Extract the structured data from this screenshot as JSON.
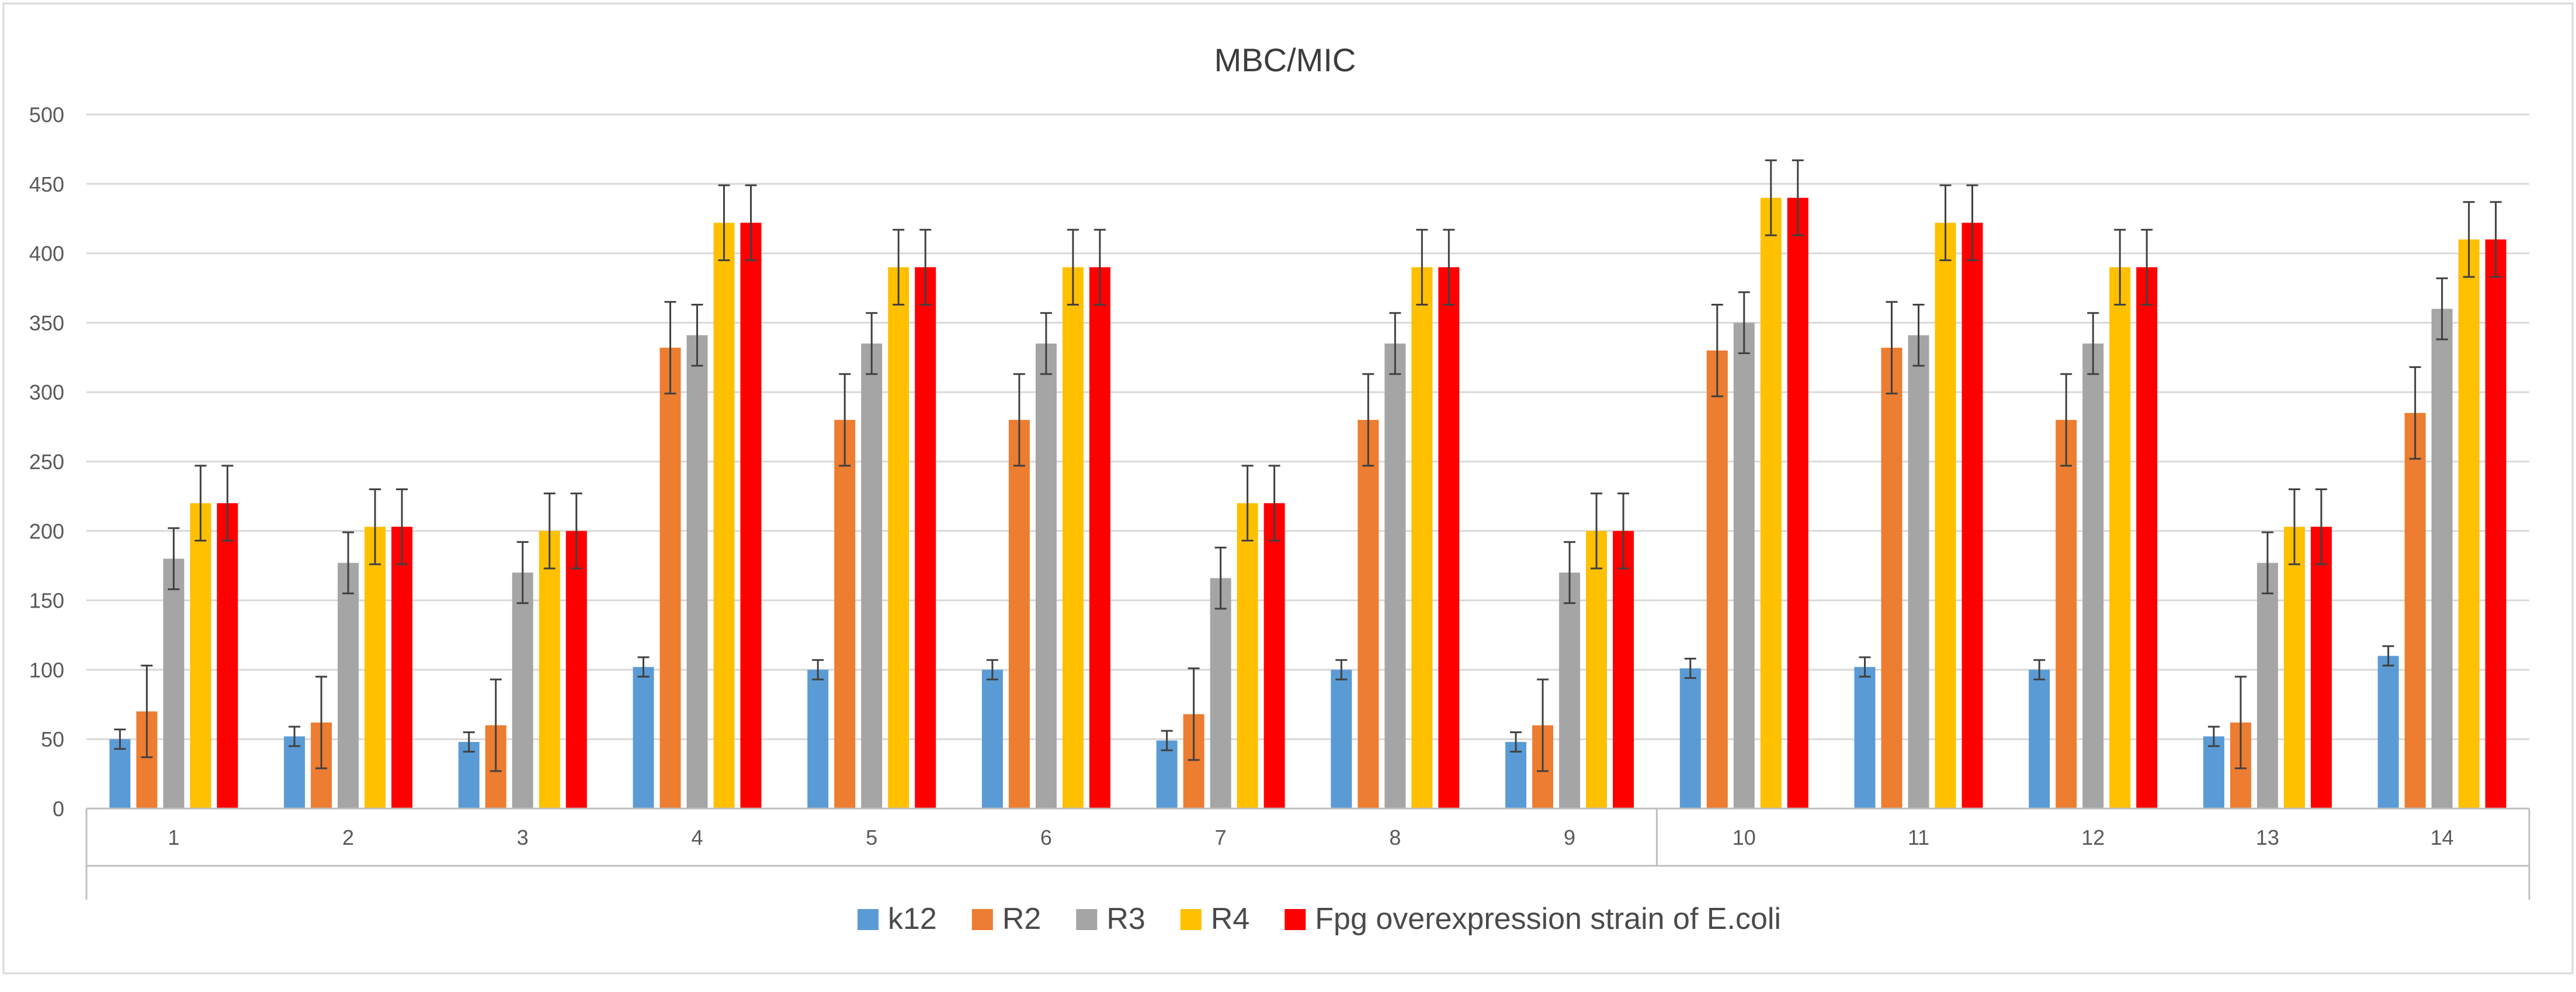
{
  "chart_data": {
    "type": "bar",
    "title": "MBC/MIC",
    "xlabel": "",
    "ylabel": "",
    "ylim": [
      0,
      500
    ],
    "yticks": [
      0,
      50,
      100,
      150,
      200,
      250,
      300,
      350,
      400,
      450,
      500
    ],
    "categories": [
      "1",
      "2",
      "3",
      "4",
      "5",
      "6",
      "7",
      "8",
      "9",
      "10",
      "11",
      "12",
      "13",
      "14"
    ],
    "grid": true,
    "legend_position": "bottom",
    "series": [
      {
        "name": "k12",
        "color": "#5b9bd5",
        "values": [
          50,
          52,
          48,
          102,
          100,
          100,
          49,
          100,
          48,
          101,
          102,
          100,
          52,
          110
        ],
        "errors": [
          7,
          7,
          7,
          7,
          7,
          7,
          7,
          7,
          7,
          7,
          7,
          7,
          7,
          7
        ]
      },
      {
        "name": "R2",
        "color": "#ed7d31",
        "values": [
          70,
          62,
          60,
          332,
          280,
          280,
          68,
          280,
          60,
          330,
          332,
          280,
          62,
          285
        ],
        "errors": [
          33,
          33,
          33,
          33,
          33,
          33,
          33,
          33,
          33,
          33,
          33,
          33,
          33,
          33
        ]
      },
      {
        "name": "R3",
        "color": "#a5a5a5",
        "values": [
          180,
          177,
          170,
          341,
          335,
          335,
          166,
          335,
          170,
          350,
          341,
          335,
          177,
          360
        ],
        "errors": [
          22,
          22,
          22,
          22,
          22,
          22,
          22,
          22,
          22,
          22,
          22,
          22,
          22,
          22
        ]
      },
      {
        "name": "R4",
        "color": "#ffc000",
        "values": [
          220,
          203,
          200,
          422,
          390,
          390,
          220,
          390,
          200,
          440,
          422,
          390,
          203,
          410
        ],
        "errors": [
          27,
          27,
          27,
          27,
          27,
          27,
          27,
          27,
          27,
          27,
          27,
          27,
          27,
          27
        ]
      },
      {
        "name": "Fpg overexpression strain of E.coli",
        "color": "#ff0000",
        "values": [
          220,
          203,
          200,
          422,
          390,
          390,
          220,
          390,
          200,
          440,
          422,
          390,
          203,
          410
        ],
        "errors": [
          27,
          27,
          27,
          27,
          27,
          27,
          27,
          27,
          27,
          27,
          27,
          27,
          27,
          27
        ]
      }
    ]
  }
}
